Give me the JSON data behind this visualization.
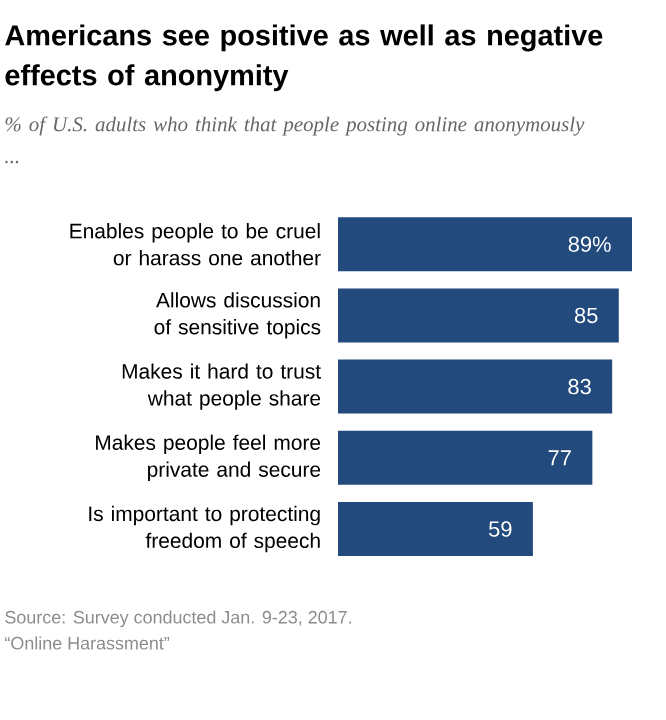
{
  "chart_data": {
    "type": "bar",
    "orientation": "horizontal",
    "title": "Americans see positive as well as negative effects of anonymity",
    "subtitle": "% of U.S. adults who think that people posting online anonymously ...",
    "categories": [
      "Enables people to be cruel or harass one another",
      "Allows discussion of sensitive topics",
      "Makes it hard to trust what people share",
      "Makes people feel more private and secure",
      "Is important to protecting freedom of speech"
    ],
    "values": [
      89,
      85,
      83,
      77,
      59
    ],
    "value_labels": [
      "89%",
      "85",
      "83",
      "77",
      "59"
    ],
    "color": "#234a7c",
    "xlim": [
      0,
      89
    ],
    "tick_labels": "y",
    "annotations": [
      "Source: Survey conducted Jan. 9-23, 2017.",
      "“Online Harassment”"
    ]
  }
}
